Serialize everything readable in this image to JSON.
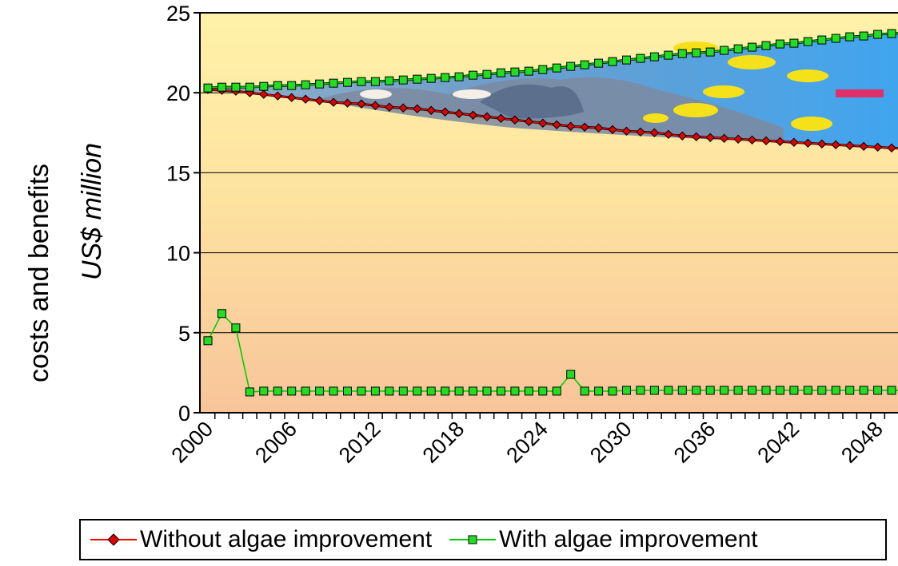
{
  "chart_data": {
    "type": "line",
    "title": "",
    "xlabel": "",
    "ylabel_line1": "costs and benefits",
    "ylabel_line2": "US$ million",
    "ylim": [
      0,
      25
    ],
    "yticks": [
      0,
      5,
      10,
      15,
      20,
      25
    ],
    "xlim": [
      2000,
      2050
    ],
    "xticks": [
      2000,
      2006,
      2012,
      2018,
      2024,
      2030,
      2036,
      2042,
      2048
    ],
    "grid": true,
    "legend_position": "bottom",
    "series": [
      {
        "name": "Without algae improvement",
        "color": "#ff0000",
        "marker": "diamond",
        "marker_color": "#e00000",
        "x": [
          2000,
          2001,
          2002,
          2003,
          2004,
          2005,
          2006,
          2007,
          2008,
          2009,
          2010,
          2011,
          2012,
          2013,
          2014,
          2015,
          2016,
          2017,
          2018,
          2019,
          2020,
          2021,
          2022,
          2023,
          2024,
          2025,
          2026,
          2027,
          2028,
          2029,
          2030,
          2031,
          2032,
          2033,
          2034,
          2035,
          2036,
          2037,
          2038,
          2039,
          2040,
          2041,
          2042,
          2043,
          2044,
          2045,
          2046,
          2047,
          2048,
          2049,
          2050
        ],
        "values": [
          20.2,
          20.15,
          20.1,
          20.0,
          19.9,
          19.8,
          19.7,
          19.6,
          19.5,
          19.4,
          19.35,
          19.3,
          19.2,
          19.1,
          19.05,
          19.0,
          18.9,
          18.8,
          18.7,
          18.6,
          18.5,
          18.4,
          18.3,
          18.2,
          18.1,
          18.0,
          17.9,
          17.85,
          17.8,
          17.7,
          17.6,
          17.55,
          17.5,
          17.4,
          17.3,
          17.25,
          17.2,
          17.15,
          17.1,
          17.05,
          17.0,
          16.95,
          16.9,
          16.85,
          16.8,
          16.75,
          16.7,
          16.65,
          16.6,
          16.55,
          16.5
        ]
      },
      {
        "name": "With algae improvement",
        "color": "#00d000",
        "marker": "square",
        "marker_color": "#22dd22",
        "x": [
          2000,
          2001,
          2002,
          2003,
          2004,
          2005,
          2006,
          2007,
          2008,
          2009,
          2010,
          2011,
          2012,
          2013,
          2014,
          2015,
          2016,
          2017,
          2018,
          2019,
          2020,
          2021,
          2022,
          2023,
          2024,
          2025,
          2026,
          2027,
          2028,
          2029,
          2030,
          2031,
          2032,
          2033,
          2034,
          2035,
          2036,
          2037,
          2038,
          2039,
          2040,
          2041,
          2042,
          2043,
          2044,
          2045,
          2046,
          2047,
          2048,
          2049,
          2050
        ],
        "values": [
          20.3,
          20.35,
          20.35,
          20.35,
          20.4,
          20.45,
          20.45,
          20.5,
          20.55,
          20.6,
          20.65,
          20.7,
          20.7,
          20.75,
          20.8,
          20.85,
          20.9,
          20.95,
          21.0,
          21.1,
          21.15,
          21.25,
          21.3,
          21.35,
          21.45,
          21.55,
          21.65,
          21.75,
          21.85,
          21.95,
          22.05,
          22.15,
          22.25,
          22.35,
          22.45,
          22.5,
          22.55,
          22.65,
          22.75,
          22.85,
          22.95,
          23.05,
          23.1,
          23.2,
          23.3,
          23.4,
          23.5,
          23.55,
          23.65,
          23.7,
          23.75
        ]
      },
      {
        "name": "With algae improvement",
        "color": "#00d000",
        "marker": "square",
        "marker_color": "#22dd22",
        "x": [
          2000,
          2001,
          2002,
          2003,
          2004,
          2005,
          2006,
          2007,
          2008,
          2009,
          2010,
          2011,
          2012,
          2013,
          2014,
          2015,
          2016,
          2017,
          2018,
          2019,
          2020,
          2021,
          2022,
          2023,
          2024,
          2025,
          2026,
          2027,
          2028,
          2029,
          2030,
          2031,
          2032,
          2033,
          2034,
          2035,
          2036,
          2037,
          2038,
          2039,
          2040,
          2041,
          2042,
          2043,
          2044,
          2045,
          2046,
          2047,
          2048,
          2049,
          2050
        ],
        "values": [
          4.5,
          6.2,
          5.3,
          1.3,
          1.35,
          1.35,
          1.35,
          1.35,
          1.35,
          1.35,
          1.35,
          1.35,
          1.35,
          1.35,
          1.35,
          1.35,
          1.35,
          1.35,
          1.35,
          1.35,
          1.35,
          1.35,
          1.35,
          1.35,
          1.35,
          1.35,
          2.4,
          1.35,
          1.35,
          1.35,
          1.4,
          1.4,
          1.4,
          1.4,
          1.4,
          1.4,
          1.4,
          1.4,
          1.4,
          1.4,
          1.4,
          1.4,
          1.4,
          1.4,
          1.4,
          1.4,
          1.4,
          1.4,
          1.4,
          1.4,
          1.4
        ]
      }
    ],
    "legend": [
      {
        "label": "Without algae improvement",
        "color": "#ff0000",
        "marker": "diamond"
      },
      {
        "label": "With algae improvement",
        "color": "#00d000",
        "marker": "square"
      }
    ],
    "background_image": "coral-reef-with-yellow-fish"
  }
}
